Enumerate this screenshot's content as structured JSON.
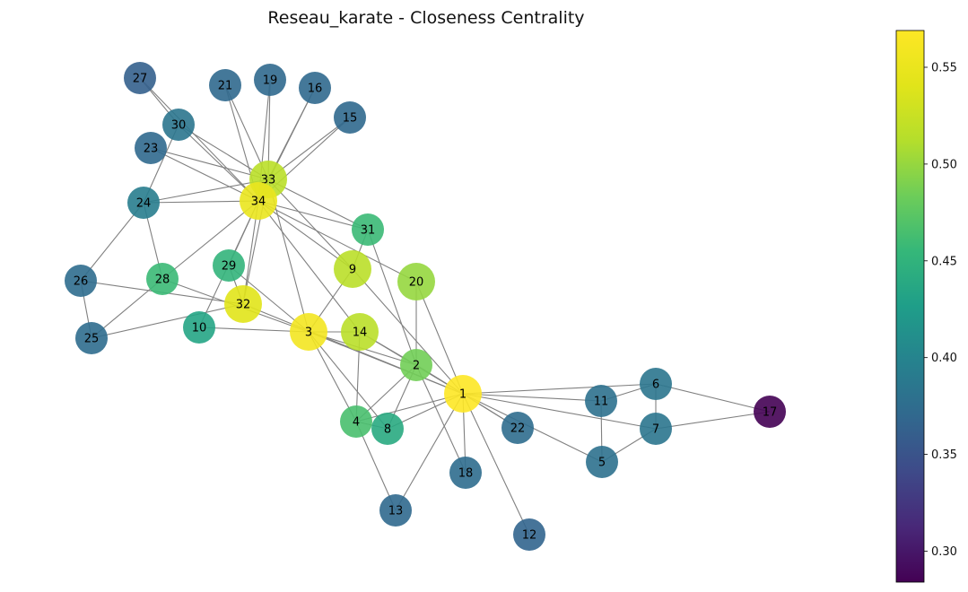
{
  "title": "Reseau_karate - Closeness Centrality",
  "colormap": {
    "name": "viridis",
    "min": 0.284,
    "max": 0.569,
    "ticks": [
      {
        "value": 0.3,
        "label": "0.30"
      },
      {
        "value": 0.35,
        "label": "0.35"
      },
      {
        "value": 0.4,
        "label": "0.40"
      },
      {
        "value": 0.45,
        "label": "0.45"
      },
      {
        "value": 0.5,
        "label": "0.50"
      },
      {
        "value": 0.55,
        "label": "0.55"
      }
    ]
  },
  "edge_color": "#808080",
  "nodes": [
    {
      "id": 1,
      "label": "1",
      "closeness": 0.569
    },
    {
      "id": 2,
      "label": "2",
      "closeness": 0.485
    },
    {
      "id": 3,
      "label": "3",
      "closeness": 0.559
    },
    {
      "id": 4,
      "label": "4",
      "closeness": 0.465
    },
    {
      "id": 5,
      "label": "5",
      "closeness": 0.379
    },
    {
      "id": 6,
      "label": "6",
      "closeness": 0.384
    },
    {
      "id": 7,
      "label": "7",
      "closeness": 0.384
    },
    {
      "id": 8,
      "label": "8",
      "closeness": 0.44
    },
    {
      "id": 9,
      "label": "9",
      "closeness": 0.516
    },
    {
      "id": 10,
      "label": "10",
      "closeness": 0.434
    },
    {
      "id": 11,
      "label": "11",
      "closeness": 0.379
    },
    {
      "id": 12,
      "label": "12",
      "closeness": 0.367
    },
    {
      "id": 13,
      "label": "13",
      "closeness": 0.371
    },
    {
      "id": 14,
      "label": "14",
      "closeness": 0.516
    },
    {
      "id": 15,
      "label": "15",
      "closeness": 0.371
    },
    {
      "id": 16,
      "label": "16",
      "closeness": 0.371
    },
    {
      "id": 17,
      "label": "17",
      "closeness": 0.284
    },
    {
      "id": 18,
      "label": "18",
      "closeness": 0.375
    },
    {
      "id": 19,
      "label": "19",
      "closeness": 0.371
    },
    {
      "id": 20,
      "label": "20",
      "closeness": 0.5
    },
    {
      "id": 21,
      "label": "21",
      "closeness": 0.371
    },
    {
      "id": 22,
      "label": "22",
      "closeness": 0.375
    },
    {
      "id": 23,
      "label": "23",
      "closeness": 0.371
    },
    {
      "id": 24,
      "label": "24",
      "closeness": 0.393
    },
    {
      "id": 25,
      "label": "25",
      "closeness": 0.375
    },
    {
      "id": 26,
      "label": "26",
      "closeness": 0.375
    },
    {
      "id": 27,
      "label": "27",
      "closeness": 0.363
    },
    {
      "id": 28,
      "label": "28",
      "closeness": 0.458
    },
    {
      "id": 29,
      "label": "29",
      "closeness": 0.452
    },
    {
      "id": 30,
      "label": "30",
      "closeness": 0.384
    },
    {
      "id": 31,
      "label": "31",
      "closeness": 0.458
    },
    {
      "id": 32,
      "label": "32",
      "closeness": 0.541
    },
    {
      "id": 33,
      "label": "33",
      "closeness": 0.516
    },
    {
      "id": 34,
      "label": "34",
      "closeness": 0.55
    }
  ],
  "edges": [
    [
      1,
      2
    ],
    [
      1,
      3
    ],
    [
      1,
      4
    ],
    [
      1,
      5
    ],
    [
      1,
      6
    ],
    [
      1,
      7
    ],
    [
      1,
      8
    ],
    [
      1,
      9
    ],
    [
      1,
      11
    ],
    [
      1,
      12
    ],
    [
      1,
      13
    ],
    [
      1,
      14
    ],
    [
      1,
      18
    ],
    [
      1,
      20
    ],
    [
      1,
      22
    ],
    [
      1,
      32
    ],
    [
      2,
      3
    ],
    [
      2,
      4
    ],
    [
      2,
      8
    ],
    [
      2,
      14
    ],
    [
      2,
      18
    ],
    [
      2,
      20
    ],
    [
      2,
      22
    ],
    [
      2,
      31
    ],
    [
      3,
      4
    ],
    [
      3,
      8
    ],
    [
      3,
      9
    ],
    [
      3,
      10
    ],
    [
      3,
      14
    ],
    [
      3,
      28
    ],
    [
      3,
      29
    ],
    [
      3,
      33
    ],
    [
      4,
      8
    ],
    [
      4,
      13
    ],
    [
      4,
      14
    ],
    [
      5,
      7
    ],
    [
      5,
      11
    ],
    [
      6,
      7
    ],
    [
      6,
      11
    ],
    [
      6,
      17
    ],
    [
      7,
      17
    ],
    [
      9,
      31
    ],
    [
      9,
      33
    ],
    [
      9,
      34
    ],
    [
      10,
      34
    ],
    [
      14,
      34
    ],
    [
      15,
      33
    ],
    [
      15,
      34
    ],
    [
      16,
      33
    ],
    [
      16,
      34
    ],
    [
      19,
      33
    ],
    [
      19,
      34
    ],
    [
      20,
      34
    ],
    [
      21,
      33
    ],
    [
      21,
      34
    ],
    [
      23,
      33
    ],
    [
      23,
      34
    ],
    [
      24,
      26
    ],
    [
      24,
      28
    ],
    [
      24,
      30
    ],
    [
      24,
      33
    ],
    [
      24,
      34
    ],
    [
      25,
      26
    ],
    [
      25,
      28
    ],
    [
      25,
      32
    ],
    [
      26,
      32
    ],
    [
      27,
      30
    ],
    [
      27,
      34
    ],
    [
      28,
      34
    ],
    [
      29,
      32
    ],
    [
      29,
      34
    ],
    [
      30,
      33
    ],
    [
      30,
      34
    ],
    [
      31,
      33
    ],
    [
      31,
      34
    ],
    [
      32,
      33
    ],
    [
      32,
      34
    ],
    [
      33,
      34
    ]
  ]
}
